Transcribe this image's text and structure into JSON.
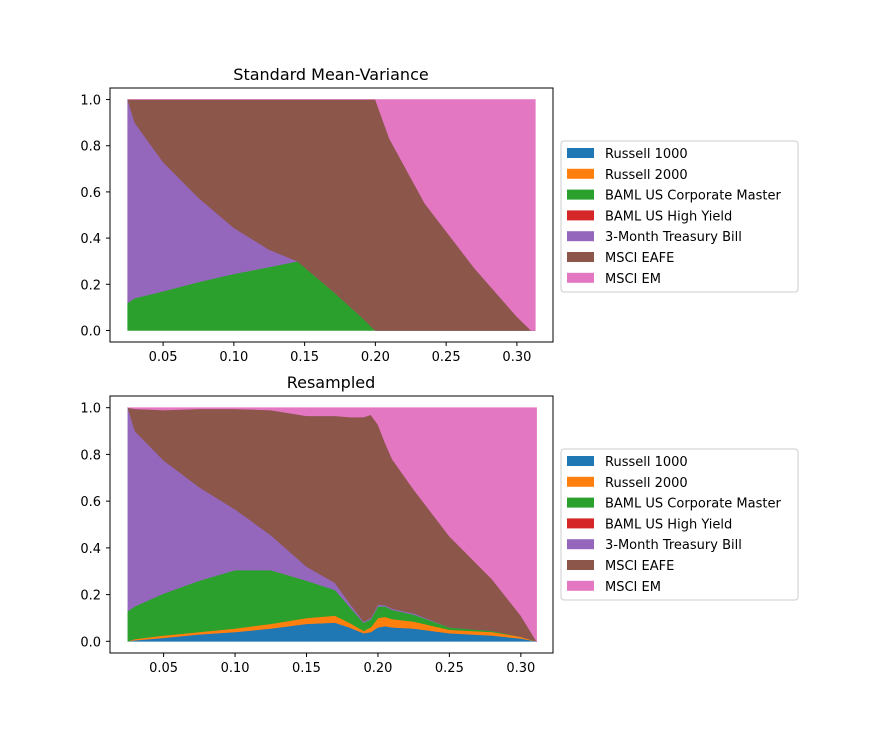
{
  "chart_data": [
    {
      "type": "area",
      "stacked": true,
      "title": "Standard Mean-Variance",
      "xlabel": "",
      "ylabel": "",
      "xlim": [
        0.0125,
        0.3255
      ],
      "ylim": [
        -0.05,
        1.05
      ],
      "xticks": [
        "0.05",
        "0.10",
        "0.15",
        "0.20",
        "0.25",
        "0.30"
      ],
      "yticks": [
        "0.0",
        "0.2",
        "0.4",
        "0.6",
        "0.8",
        "1.0"
      ],
      "legend_position": "center-right-outside",
      "x": [
        0.025,
        0.03,
        0.05,
        0.075,
        0.1,
        0.125,
        0.145,
        0.17,
        0.19,
        0.2,
        0.21,
        0.235,
        0.27,
        0.3,
        0.31,
        0.313
      ],
      "series": [
        {
          "name": "Russell 1000",
          "color": "#1f77b4",
          "values": [
            0,
            0,
            0,
            0,
            0,
            0,
            0,
            0,
            0,
            0,
            0,
            0,
            0,
            0,
            0,
            0
          ]
        },
        {
          "name": "Russell 2000",
          "color": "#ff7f0e",
          "values": [
            0,
            0,
            0,
            0,
            0,
            0,
            0,
            0,
            0,
            0,
            0,
            0,
            0,
            0,
            0,
            0
          ]
        },
        {
          "name": "BAML US Corporate Master",
          "color": "#2ca02c",
          "values": [
            0.12,
            0.14,
            0.17,
            0.21,
            0.245,
            0.275,
            0.3,
            0.17,
            0.06,
            0.0,
            0,
            0,
            0,
            0,
            0,
            0
          ]
        },
        {
          "name": "BAML US High Yield",
          "color": "#d62728",
          "values": [
            0,
            0,
            0,
            0,
            0,
            0,
            0,
            0,
            0,
            0,
            0,
            0,
            0,
            0,
            0,
            0
          ]
        },
        {
          "name": "3-Month Treasury Bill",
          "color": "#9467bd",
          "values": [
            0.88,
            0.76,
            0.56,
            0.365,
            0.2,
            0.075,
            0.0,
            0,
            0,
            0,
            0,
            0,
            0,
            0,
            0,
            0
          ]
        },
        {
          "name": "MSCI EAFE",
          "color": "#8c564b",
          "values": [
            0,
            0.1,
            0.27,
            0.425,
            0.555,
            0.65,
            0.7,
            0.83,
            0.94,
            1.0,
            0.83,
            0.55,
            0.27,
            0.06,
            0.0,
            0.0
          ]
        },
        {
          "name": "MSCI EM",
          "color": "#e377c2",
          "values": [
            0,
            0,
            0,
            0,
            0,
            0,
            0,
            0,
            0,
            0,
            0.17,
            0.45,
            0.73,
            0.94,
            1.0,
            1.0
          ]
        }
      ]
    },
    {
      "type": "area",
      "stacked": true,
      "title": "Resampled",
      "xlabel": "",
      "ylabel": "",
      "xlim": [
        0.0125,
        0.3225
      ],
      "ylim": [
        -0.05,
        1.05
      ],
      "xticks": [
        "0.05",
        "0.10",
        "0.15",
        "0.20",
        "0.25",
        "0.30"
      ],
      "yticks": [
        "0.0",
        "0.2",
        "0.4",
        "0.6",
        "0.8",
        "1.0"
      ],
      "legend_position": "center-right-outside",
      "x": [
        0.025,
        0.03,
        0.05,
        0.075,
        0.1,
        0.125,
        0.15,
        0.17,
        0.18,
        0.19,
        0.195,
        0.2,
        0.205,
        0.21,
        0.225,
        0.25,
        0.28,
        0.3,
        0.311
      ],
      "series": [
        {
          "name": "Russell 1000",
          "color": "#1f77b4",
          "values": [
            0,
            0.005,
            0.015,
            0.03,
            0.04,
            0.055,
            0.075,
            0.08,
            0.06,
            0.035,
            0.04,
            0.06,
            0.065,
            0.06,
            0.055,
            0.035,
            0.025,
            0.012,
            0
          ]
        },
        {
          "name": "Russell 2000",
          "color": "#ff7f0e",
          "values": [
            0,
            0.005,
            0.01,
            0.01,
            0.015,
            0.02,
            0.025,
            0.03,
            0.02,
            0.01,
            0.02,
            0.04,
            0.04,
            0.035,
            0.03,
            0.015,
            0.015,
            0.008,
            0
          ]
        },
        {
          "name": "BAML US Corporate Master",
          "color": "#2ca02c",
          "values": [
            0.13,
            0.14,
            0.18,
            0.22,
            0.25,
            0.23,
            0.16,
            0.11,
            0.07,
            0.035,
            0.035,
            0.05,
            0.045,
            0.04,
            0.03,
            0.01,
            0.005,
            0,
            0
          ]
        },
        {
          "name": "BAML US High Yield",
          "color": "#d62728",
          "values": [
            0,
            0,
            0,
            0,
            0,
            0,
            0,
            0,
            0,
            0,
            0,
            0,
            0,
            0,
            0,
            0,
            0,
            0,
            0
          ]
        },
        {
          "name": "3-Month Treasury Bill",
          "color": "#9467bd",
          "values": [
            0.87,
            0.75,
            0.57,
            0.4,
            0.26,
            0.15,
            0.06,
            0.03,
            0.015,
            0.005,
            0.005,
            0.008,
            0.005,
            0.005,
            0.005,
            0,
            0,
            0,
            0
          ]
        },
        {
          "name": "MSCI EAFE",
          "color": "#8c564b",
          "values": [
            0,
            0.095,
            0.215,
            0.335,
            0.43,
            0.535,
            0.645,
            0.715,
            0.795,
            0.875,
            0.87,
            0.77,
            0.695,
            0.64,
            0.53,
            0.39,
            0.22,
            0.09,
            0
          ]
        },
        {
          "name": "MSCI EM",
          "color": "#e377c2",
          "values": [
            0,
            0.005,
            0.01,
            0.005,
            0.005,
            0.01,
            0.035,
            0.035,
            0.04,
            0.04,
            0.03,
            0.072,
            0.15,
            0.22,
            0.35,
            0.55,
            0.735,
            0.89,
            1.0
          ]
        }
      ]
    }
  ]
}
